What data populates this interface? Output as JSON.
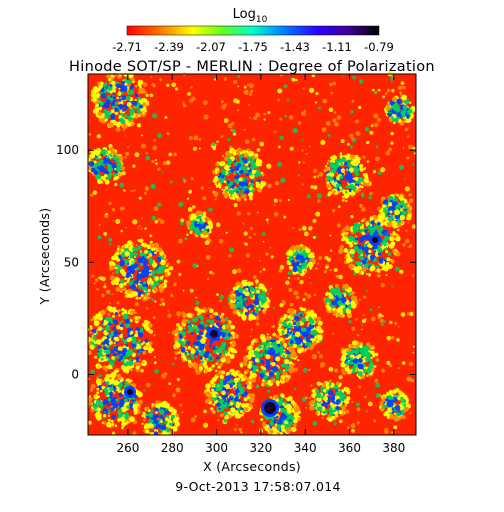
{
  "chart_data": {
    "type": "heatmap",
    "title": "Hinode SOT/SP - MERLIN : Degree of Polarization",
    "colorbar": {
      "label_base": "Log",
      "label_sub": "10",
      "ticks": [
        "-2.71",
        "-2.39",
        "-2.07",
        "-1.75",
        "-1.43",
        "-1.11",
        "-0.79"
      ],
      "range": [
        -2.71,
        -0.79
      ],
      "colormap": "rainbow (red to black)"
    },
    "xlabel": "X (Arcseconds)",
    "ylabel": "Y (Arcseconds)",
    "x_ticks": [
      "260",
      "280",
      "300",
      "320",
      "340",
      "360",
      "380"
    ],
    "y_ticks": [
      "0",
      "50",
      "100"
    ],
    "xlim": [
      242,
      390
    ],
    "ylim": [
      -27,
      134
    ],
    "timestamp": "9-Oct-2013 17:58:07.014",
    "palette": {
      "low": "#ff1a00",
      "mid_low": "#ff8c00",
      "mid": "#ffff00",
      "mid_high": "#00d060",
      "high": "#0040ff",
      "peak": "#180028"
    }
  }
}
